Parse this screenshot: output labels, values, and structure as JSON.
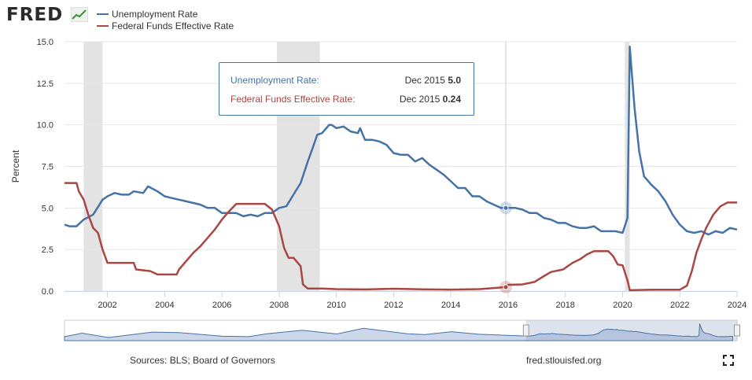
{
  "header": {
    "logo_text": "FRED",
    "logo_icon": "fred-chart-logo-icon"
  },
  "legend": [
    {
      "label": "Unemployment Rate",
      "color": "#4572a7"
    },
    {
      "label": "Federal Funds Effective Rate",
      "color": "#aa4643"
    }
  ],
  "tooltip": {
    "rows": [
      {
        "label": "Unemployment Rate:",
        "date": "Dec 2015",
        "value": "5.0",
        "color": "#4572a7"
      },
      {
        "label": "Federal Funds Effective Rate:",
        "date": "Dec 2015",
        "value": "0.24",
        "color": "#aa4643"
      }
    ]
  },
  "footer": {
    "sources": "Sources: BLS; Board of Governors",
    "site": "fred.stlouisfed.org",
    "fullscreen_icon": "fullscreen-icon"
  },
  "chart_data": {
    "type": "line",
    "xlabel": "",
    "ylabel": "Percent",
    "xlim": [
      2000.5,
      2024.0
    ],
    "ylim": [
      0,
      15
    ],
    "x_ticks": [
      "2002",
      "2004",
      "2006",
      "2008",
      "2010",
      "2012",
      "2014",
      "2016",
      "2018",
      "2020",
      "2022",
      "2024"
    ],
    "y_ticks": [
      "0.0",
      "2.5",
      "5.0",
      "7.5",
      "10.0",
      "12.5",
      "15.0"
    ],
    "grid": true,
    "legend_position": "top-left",
    "recessions": [
      [
        2001.17,
        2001.83
      ],
      [
        2007.92,
        2009.42
      ],
      [
        2020.08,
        2020.25
      ]
    ],
    "crosshair_x": 2015.92,
    "series": [
      {
        "name": "Unemployment Rate",
        "color": "#4572a7",
        "points": [
          [
            2000.5,
            4.0
          ],
          [
            2000.67,
            3.9
          ],
          [
            2000.92,
            3.9
          ],
          [
            2001.17,
            4.3
          ],
          [
            2001.5,
            4.6
          ],
          [
            2001.83,
            5.5
          ],
          [
            2002.0,
            5.7
          ],
          [
            2002.25,
            5.9
          ],
          [
            2002.5,
            5.8
          ],
          [
            2002.75,
            5.8
          ],
          [
            2002.92,
            6.0
          ],
          [
            2003.25,
            5.9
          ],
          [
            2003.42,
            6.3
          ],
          [
            2003.75,
            6.0
          ],
          [
            2004.0,
            5.7
          ],
          [
            2004.25,
            5.6
          ],
          [
            2004.5,
            5.5
          ],
          [
            2004.75,
            5.4
          ],
          [
            2005.0,
            5.3
          ],
          [
            2005.25,
            5.2
          ],
          [
            2005.5,
            5.0
          ],
          [
            2005.75,
            5.0
          ],
          [
            2006.0,
            4.7
          ],
          [
            2006.25,
            4.7
          ],
          [
            2006.5,
            4.7
          ],
          [
            2006.75,
            4.5
          ],
          [
            2007.0,
            4.6
          ],
          [
            2007.25,
            4.5
          ],
          [
            2007.5,
            4.7
          ],
          [
            2007.75,
            4.7
          ],
          [
            2008.0,
            5.0
          ],
          [
            2008.25,
            5.1
          ],
          [
            2008.5,
            5.8
          ],
          [
            2008.75,
            6.5
          ],
          [
            2009.0,
            7.8
          ],
          [
            2009.17,
            8.6
          ],
          [
            2009.33,
            9.4
          ],
          [
            2009.5,
            9.5
          ],
          [
            2009.75,
            10.0
          ],
          [
            2009.83,
            10.0
          ],
          [
            2010.0,
            9.8
          ],
          [
            2010.25,
            9.9
          ],
          [
            2010.5,
            9.6
          ],
          [
            2010.75,
            9.5
          ],
          [
            2010.83,
            9.8
          ],
          [
            2011.0,
            9.1
          ],
          [
            2011.25,
            9.1
          ],
          [
            2011.5,
            9.0
          ],
          [
            2011.75,
            8.8
          ],
          [
            2012.0,
            8.3
          ],
          [
            2012.25,
            8.2
          ],
          [
            2012.5,
            8.2
          ],
          [
            2012.75,
            7.8
          ],
          [
            2013.0,
            8.0
          ],
          [
            2013.25,
            7.6
          ],
          [
            2013.5,
            7.3
          ],
          [
            2013.75,
            7.0
          ],
          [
            2014.0,
            6.6
          ],
          [
            2014.25,
            6.2
          ],
          [
            2014.5,
            6.2
          ],
          [
            2014.75,
            5.7
          ],
          [
            2015.0,
            5.7
          ],
          [
            2015.25,
            5.4
          ],
          [
            2015.5,
            5.2
          ],
          [
            2015.75,
            5.0
          ],
          [
            2015.92,
            5.0
          ],
          [
            2016.25,
            5.0
          ],
          [
            2016.5,
            4.9
          ],
          [
            2016.75,
            4.7
          ],
          [
            2017.0,
            4.7
          ],
          [
            2017.25,
            4.4
          ],
          [
            2017.5,
            4.3
          ],
          [
            2017.75,
            4.1
          ],
          [
            2018.0,
            4.1
          ],
          [
            2018.25,
            3.9
          ],
          [
            2018.5,
            3.8
          ],
          [
            2018.75,
            3.8
          ],
          [
            2019.0,
            3.9
          ],
          [
            2019.25,
            3.6
          ],
          [
            2019.5,
            3.6
          ],
          [
            2019.75,
            3.6
          ],
          [
            2020.0,
            3.5
          ],
          [
            2020.17,
            4.4
          ],
          [
            2020.25,
            14.7
          ],
          [
            2020.42,
            11.0
          ],
          [
            2020.58,
            8.4
          ],
          [
            2020.75,
            6.9
          ],
          [
            2021.0,
            6.4
          ],
          [
            2021.25,
            6.0
          ],
          [
            2021.5,
            5.4
          ],
          [
            2021.75,
            4.6
          ],
          [
            2022.0,
            4.0
          ],
          [
            2022.25,
            3.6
          ],
          [
            2022.5,
            3.5
          ],
          [
            2022.75,
            3.6
          ],
          [
            2023.0,
            3.4
          ],
          [
            2023.25,
            3.6
          ],
          [
            2023.5,
            3.5
          ],
          [
            2023.75,
            3.8
          ],
          [
            2024.0,
            3.7
          ]
        ]
      },
      {
        "name": "Federal Funds Effective Rate",
        "color": "#aa4643",
        "points": [
          [
            2000.5,
            6.5
          ],
          [
            2000.92,
            6.5
          ],
          [
            2001.0,
            6.0
          ],
          [
            2001.17,
            5.5
          ],
          [
            2001.33,
            4.6
          ],
          [
            2001.5,
            3.8
          ],
          [
            2001.67,
            3.5
          ],
          [
            2001.83,
            2.5
          ],
          [
            2002.0,
            1.7
          ],
          [
            2002.5,
            1.7
          ],
          [
            2002.92,
            1.7
          ],
          [
            2003.0,
            1.3
          ],
          [
            2003.5,
            1.2
          ],
          [
            2003.75,
            1.0
          ],
          [
            2004.0,
            1.0
          ],
          [
            2004.42,
            1.0
          ],
          [
            2004.5,
            1.3
          ],
          [
            2004.75,
            1.8
          ],
          [
            2005.0,
            2.3
          ],
          [
            2005.25,
            2.7
          ],
          [
            2005.5,
            3.2
          ],
          [
            2005.75,
            3.7
          ],
          [
            2006.0,
            4.3
          ],
          [
            2006.25,
            4.8
          ],
          [
            2006.5,
            5.25
          ],
          [
            2007.0,
            5.25
          ],
          [
            2007.5,
            5.25
          ],
          [
            2007.75,
            4.9
          ],
          [
            2008.0,
            3.9
          ],
          [
            2008.17,
            2.6
          ],
          [
            2008.33,
            2.0
          ],
          [
            2008.5,
            2.0
          ],
          [
            2008.75,
            1.5
          ],
          [
            2008.83,
            0.4
          ],
          [
            2009.0,
            0.15
          ],
          [
            2009.5,
            0.15
          ],
          [
            2010.0,
            0.12
          ],
          [
            2011.0,
            0.1
          ],
          [
            2012.0,
            0.14
          ],
          [
            2013.0,
            0.11
          ],
          [
            2014.0,
            0.09
          ],
          [
            2015.0,
            0.12
          ],
          [
            2015.92,
            0.24
          ],
          [
            2016.0,
            0.38
          ],
          [
            2016.5,
            0.4
          ],
          [
            2016.92,
            0.55
          ],
          [
            2017.25,
            0.9
          ],
          [
            2017.5,
            1.15
          ],
          [
            2017.92,
            1.3
          ],
          [
            2018.25,
            1.7
          ],
          [
            2018.5,
            1.9
          ],
          [
            2018.75,
            2.2
          ],
          [
            2019.0,
            2.4
          ],
          [
            2019.5,
            2.4
          ],
          [
            2019.67,
            2.1
          ],
          [
            2019.83,
            1.6
          ],
          [
            2020.0,
            1.55
          ],
          [
            2020.17,
            0.65
          ],
          [
            2020.25,
            0.05
          ],
          [
            2021.0,
            0.08
          ],
          [
            2022.0,
            0.08
          ],
          [
            2022.25,
            0.33
          ],
          [
            2022.42,
            1.2
          ],
          [
            2022.58,
            2.3
          ],
          [
            2022.75,
            3.1
          ],
          [
            2022.92,
            3.8
          ],
          [
            2023.17,
            4.6
          ],
          [
            2023.42,
            5.1
          ],
          [
            2023.67,
            5.33
          ],
          [
            2024.0,
            5.33
          ]
        ]
      }
    ]
  }
}
